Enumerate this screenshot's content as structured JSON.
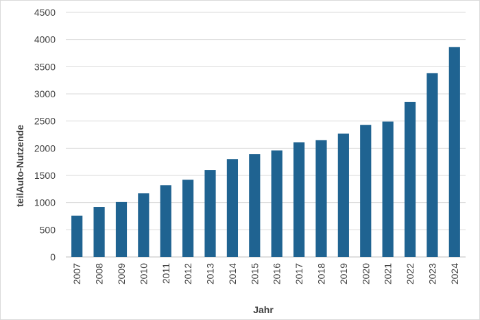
{
  "chart_data": {
    "type": "bar",
    "title": "",
    "xlabel": "Jahr",
    "ylabel": "teilAuto-Nutzende",
    "ylim": [
      0,
      4500
    ],
    "yticks": [
      0,
      500,
      1000,
      1500,
      2000,
      2500,
      3000,
      3500,
      4000,
      4500
    ],
    "grid": true,
    "legend": "none",
    "bar_color": "#1F6391",
    "categories": [
      "2007",
      "2008",
      "2009",
      "2010",
      "2011",
      "2012",
      "2013",
      "2014",
      "2015",
      "2016",
      "2017",
      "2018",
      "2019",
      "2020",
      "2021",
      "2022",
      "2023",
      "2024"
    ],
    "values": [
      760,
      920,
      1010,
      1170,
      1320,
      1420,
      1600,
      1800,
      1890,
      1960,
      2110,
      2150,
      2270,
      2430,
      2490,
      2850,
      3380,
      3860
    ]
  }
}
